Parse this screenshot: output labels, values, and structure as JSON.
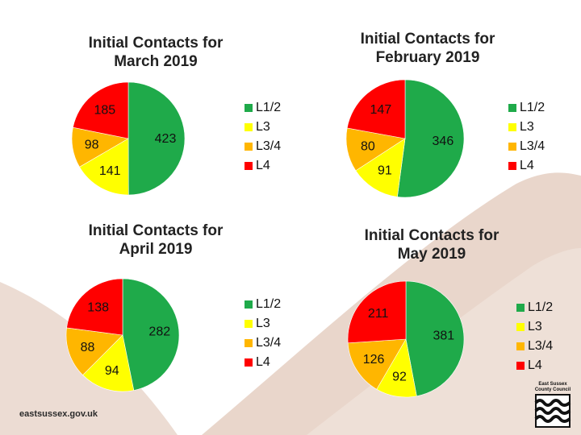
{
  "colors": {
    "L1/2": "#1faa4a",
    "L3": "#ffff00",
    "L3/4": "#ffb600",
    "L4": "#ff0000",
    "background_shape": "#e8d3c8"
  },
  "footer": {
    "url": "eastsussex.gov.uk",
    "logo_line1": "East Sussex",
    "logo_line2": "County Council"
  },
  "chart_data": [
    {
      "type": "pie",
      "title_line1": "Initial Contacts for",
      "title_line2": "March 2019",
      "labels": [
        "L1/2",
        "L3",
        "L3/4",
        "L4"
      ],
      "values": [
        423,
        141,
        98,
        185
      ],
      "legend": "right"
    },
    {
      "type": "pie",
      "title_line1": "Initial Contacts for",
      "title_line2": "February 2019",
      "labels": [
        "L1/2",
        "L3",
        "L3/4",
        "L4"
      ],
      "values": [
        346,
        91,
        80,
        147
      ],
      "legend": "right"
    },
    {
      "type": "pie",
      "title_line1": "Initial Contacts for",
      "title_line2": "April 2019",
      "labels": [
        "L1/2",
        "L3",
        "L3/4",
        "L4"
      ],
      "values": [
        282,
        94,
        88,
        138
      ],
      "legend": "right"
    },
    {
      "type": "pie",
      "title_line1": "Initial Contacts for",
      "title_line2": "May 2019",
      "labels": [
        "L1/2",
        "L3",
        "L3/4",
        "L4"
      ],
      "values": [
        381,
        92,
        126,
        211
      ],
      "legend": "right"
    }
  ]
}
